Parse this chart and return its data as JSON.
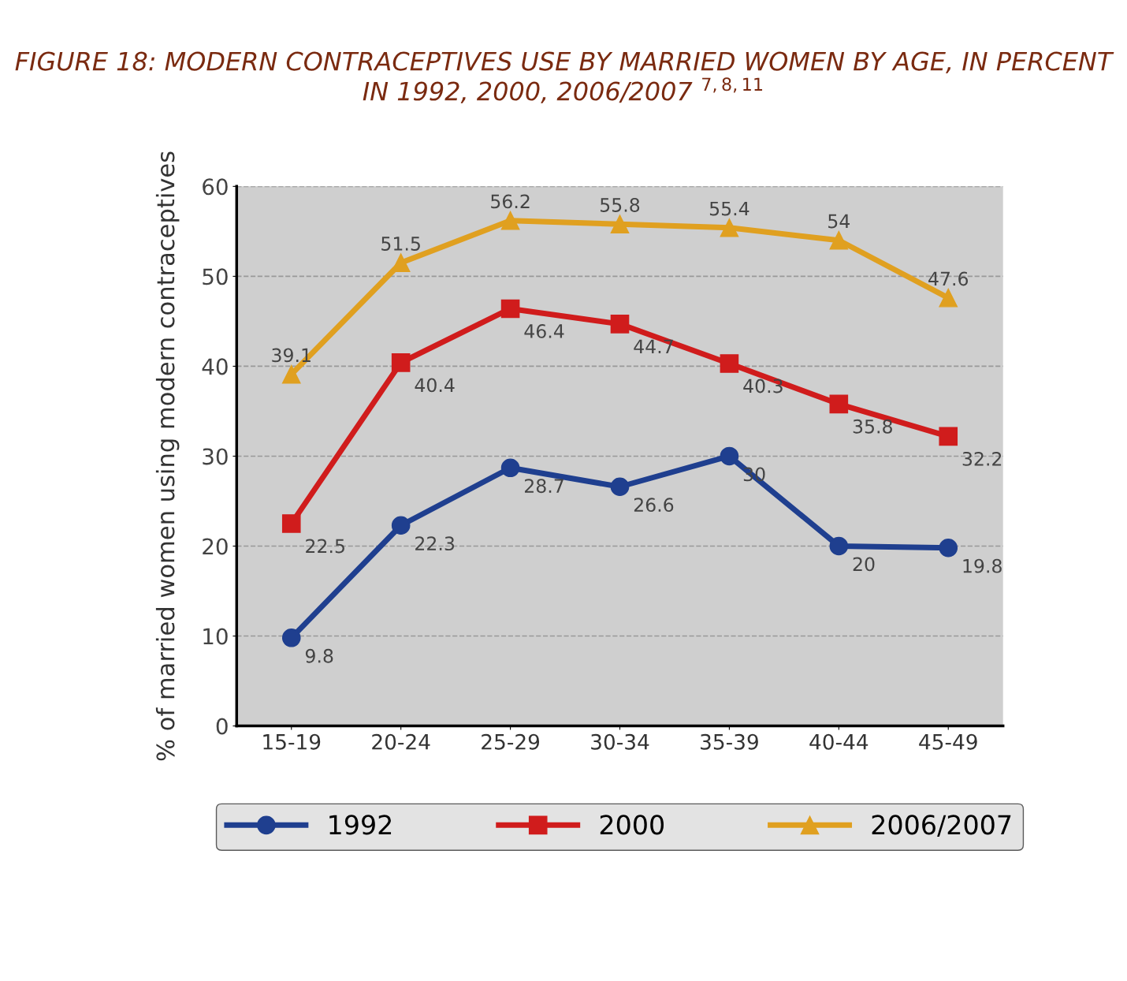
{
  "chart_data": {
    "type": "line",
    "title": "FIGURE 18: MODERN CONTRACEPTIVES USE BY MARRIED WOMEN BY AGE, IN PERCENT IN 1992, 2000, 2006/2007 $^{7,8,11}$",
    "ylabel": "% of married women using modern contraceptives",
    "categories": [
      "15-19",
      "20-24",
      "25-29",
      "30-34",
      "35-39",
      "40-44",
      "45-49"
    ],
    "series": [
      {
        "name": "1992",
        "color": "#1f3f8f",
        "marker": "circle",
        "values": [
          9.8,
          22.3,
          28.7,
          26.6,
          30,
          20,
          19.8
        ]
      },
      {
        "name": "2000",
        "color": "#d01c1c",
        "marker": "square",
        "values": [
          22.5,
          40.4,
          46.4,
          44.7,
          40.3,
          35.8,
          32.2
        ]
      },
      {
        "name": "2006/2007",
        "color": "#e0a020",
        "marker": "triangle",
        "values": [
          39.1,
          51.5,
          56.2,
          55.8,
          55.4,
          54,
          47.6
        ]
      }
    ],
    "ylim": [
      0,
      60
    ],
    "yticks": [
      0,
      10,
      20,
      30,
      40,
      50,
      60
    ],
    "grid": "y",
    "legend": "bottom",
    "data_labels": true,
    "line_style": "solid"
  }
}
